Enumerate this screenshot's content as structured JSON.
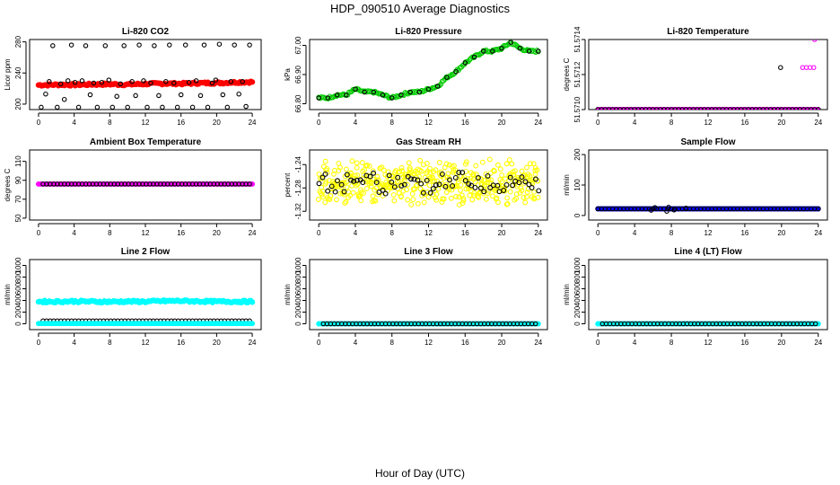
{
  "figure": {
    "title": "HDP_090510  Average Diagnostics",
    "xlabel": "Hour of Day (UTC)"
  },
  "colors": {
    "black": "#000000",
    "red": "#ff0000",
    "green": "#00cc00",
    "magenta": "#ff00ff",
    "yellow": "#ffff00",
    "blue": "#0000ff",
    "cyan": "#00ffff"
  },
  "chart_data": [
    {
      "type": "scatter",
      "title": "Li-820 CO2",
      "ylabel": "Licor ppm",
      "xlim": [
        -1,
        25
      ],
      "ylim": [
        193,
        283
      ],
      "xticks": [
        "0",
        "4",
        "8",
        "12",
        "16",
        "20",
        "24"
      ],
      "yticks": [
        "200",
        "240",
        "280"
      ],
      "series": [
        {
          "name": "all",
          "color": "red",
          "kind": "band",
          "x_start": 0,
          "x_end": 24,
          "values": [
            224.5,
            225.0,
            224.8,
            225.3,
            225.6,
            225.2,
            226.0,
            226.5,
            226.3,
            227.0,
            227.2,
            228.0,
            228.5
          ]
        },
        {
          "name": "avg",
          "color": "black",
          "x": [
            0.3,
            0.8,
            1.2,
            1.6,
            2.1,
            2.5,
            2.9,
            3.3,
            3.7,
            4.1,
            4.5,
            4.9,
            5.3,
            5.8,
            6.2,
            6.6,
            7.1,
            7.5,
            7.9,
            8.3,
            8.8,
            9.2,
            9.6,
            10.0,
            10.5,
            10.9,
            11.3,
            11.8,
            12.2,
            12.6,
            13.0,
            13.5,
            13.9,
            14.3,
            14.7,
            15.2,
            15.6,
            16.0,
            16.5,
            16.9,
            17.3,
            17.7,
            18.2,
            18.6,
            19.0,
            19.5,
            19.9,
            20.3,
            20.7,
            21.2,
            21.6,
            22.0,
            22.5,
            22.9,
            23.3,
            23.7
          ],
          "values": [
            196,
            213,
            229,
            275,
            196,
            226,
            206,
            230,
            276,
            228,
            196,
            230,
            275,
            212,
            227,
            196,
            228,
            275,
            231,
            196,
            210,
            226,
            275,
            196,
            229,
            211,
            276,
            230,
            196,
            227,
            275,
            211,
            196,
            229,
            276,
            227,
            196,
            212,
            276,
            228,
            196,
            230,
            211,
            276,
            196,
            227,
            231,
            277,
            212,
            196,
            229,
            276,
            213,
            229,
            197,
            276
          ]
        }
      ]
    },
    {
      "type": "scatter",
      "title": "Li-820 Pressure",
      "ylabel": "kPa",
      "xlim": [
        -1,
        25
      ],
      "ylim": [
        66.78,
        67.02
      ],
      "xticks": [
        "0",
        "4",
        "8",
        "12",
        "16",
        "20",
        "24"
      ],
      "yticks": [
        "66.80",
        "66.90",
        "67.00"
      ],
      "series": [
        {
          "name": "all",
          "color": "green",
          "kind": "curve",
          "x": [
            0,
            1,
            2,
            3,
            4,
            5,
            6,
            7,
            8,
            9,
            10,
            11,
            12,
            13,
            14,
            15,
            16,
            17,
            18,
            19,
            20,
            21,
            22,
            23,
            24
          ],
          "values": [
            66.82,
            66.82,
            66.83,
            66.83,
            66.85,
            66.84,
            66.84,
            66.83,
            66.82,
            66.83,
            66.84,
            66.84,
            66.85,
            66.86,
            66.89,
            66.91,
            66.94,
            66.96,
            66.98,
            66.98,
            66.99,
            67.01,
            66.99,
            66.98,
            66.98
          ]
        },
        {
          "name": "avg",
          "color": "black",
          "x": [
            0,
            1,
            2,
            3,
            4,
            5,
            6,
            7,
            8,
            9,
            10,
            11,
            12,
            13,
            14,
            15,
            16,
            17,
            18,
            19,
            20,
            21,
            22,
            23,
            24
          ],
          "values": [
            66.82,
            66.82,
            66.83,
            66.83,
            66.85,
            66.84,
            66.84,
            66.83,
            66.82,
            66.83,
            66.84,
            66.84,
            66.85,
            66.86,
            66.89,
            66.91,
            66.94,
            66.96,
            66.98,
            66.98,
            66.99,
            67.01,
            66.99,
            66.98,
            66.98
          ]
        }
      ]
    },
    {
      "type": "scatter",
      "title": "Li-820 Temperature",
      "ylabel": "degrees C",
      "xlim": [
        -1,
        25
      ],
      "ylim": [
        51.571,
        51.5714
      ],
      "xticks": [
        "0",
        "4",
        "8",
        "12",
        "16",
        "20",
        "24"
      ],
      "yticks": [
        "51.5710",
        "51.5712",
        "51.5714"
      ],
      "series": [
        {
          "name": "all",
          "color": "magenta",
          "kind": "flat",
          "x_start": 0,
          "x_end": 24,
          "value": 51.571,
          "extra_x": [
            22.3,
            22.7,
            23.1,
            23.5,
            23.6
          ],
          "extra_values": [
            51.57124,
            51.57124,
            51.57124,
            51.57124,
            51.5714
          ]
        },
        {
          "name": "avg",
          "color": "black",
          "kind": "flat",
          "x_start": 0,
          "x_end": 24,
          "value": 51.571,
          "extra_x": [
            19.9
          ],
          "extra_values": [
            51.57124
          ]
        }
      ]
    },
    {
      "type": "scatter",
      "title": "Ambient Box Temperature",
      "ylabel": "degrees C",
      "xlim": [
        -1,
        25
      ],
      "ylim": [
        48,
        122
      ],
      "xticks": [
        "0",
        "4",
        "8",
        "12",
        "16",
        "20",
        "24"
      ],
      "yticks": [
        "50",
        "70",
        "90",
        "110"
      ],
      "series": [
        {
          "name": "all",
          "color": "magenta",
          "kind": "flat",
          "x_start": 0,
          "x_end": 24,
          "value": 86
        },
        {
          "name": "avg",
          "color": "black",
          "kind": "flat",
          "x_start": 0.5,
          "x_end": 24,
          "value": 86
        }
      ]
    },
    {
      "type": "scatter",
      "title": "Gas Stream RH",
      "ylabel": "percent",
      "xlim": [
        -1,
        25
      ],
      "ylim": [
        -1.335,
        -1.215
      ],
      "xticks": [
        "0",
        "4",
        "8",
        "12",
        "16",
        "20",
        "24"
      ],
      "yticks": [
        "-1.32",
        "-1.28",
        "-1.24"
      ],
      "series": [
        {
          "name": "all",
          "color": "yellow",
          "kind": "cloud",
          "x_start": 0,
          "x_end": 24,
          "center": -1.27,
          "spread": 0.03
        },
        {
          "name": "avg",
          "color": "black",
          "kind": "cloud",
          "x_start": 0,
          "x_end": 24,
          "center": -1.268,
          "spread": 0.018
        }
      ]
    },
    {
      "type": "scatter",
      "title": "Sample Flow",
      "ylabel": "ml/min",
      "xlim": [
        -1,
        25
      ],
      "ylim": [
        -15,
        215
      ],
      "xticks": [
        "0",
        "4",
        "8",
        "12",
        "16",
        "20",
        "24"
      ],
      "yticks": [
        "0",
        "100",
        "200"
      ],
      "series": [
        {
          "name": "all",
          "color": "blue",
          "kind": "flat",
          "x_start": 0,
          "x_end": 24,
          "value": 22
        },
        {
          "name": "avg",
          "color": "black",
          "kind": "flat",
          "x_start": 0,
          "x_end": 24,
          "value": 22,
          "extra_x": [
            5.8,
            6.2,
            7.5,
            7.7,
            8.3,
            9.6
          ],
          "extra_values": [
            17,
            26,
            14,
            27,
            18,
            24
          ]
        }
      ]
    },
    {
      "type": "scatter",
      "title": "Line 2 Flow",
      "ylabel": "ml/min",
      "xlim": [
        -1,
        25
      ],
      "ylim": [
        -100,
        1100
      ],
      "xticks": [
        "0",
        "4",
        "8",
        "12",
        "16",
        "20",
        "24"
      ],
      "yticks": [
        "0",
        "200",
        "400",
        "600",
        "800",
        "1000"
      ],
      "series": [
        {
          "name": "all",
          "color": "cyan",
          "kind": "band",
          "x_start": 0,
          "x_end": 24,
          "values": [
            380,
            380,
            385,
            380,
            378,
            382,
            380,
            390,
            392,
            385,
            380,
            382,
            380
          ]
        },
        {
          "name": "avg",
          "color": "black",
          "kind": "flat",
          "x_start": 0.5,
          "x_end": 24,
          "value": 50
        },
        {
          "name": "zero",
          "color": "cyan",
          "kind": "flat",
          "x_start": 0,
          "x_end": 24,
          "value": 5
        }
      ]
    },
    {
      "type": "scatter",
      "title": "Line 3 Flow",
      "ylabel": "ml/min",
      "xlim": [
        -1,
        25
      ],
      "ylim": [
        -100,
        1100
      ],
      "xticks": [
        "0",
        "4",
        "8",
        "12",
        "16",
        "20",
        "24"
      ],
      "yticks": [
        "0",
        "200",
        "400",
        "600",
        "800",
        "1000"
      ],
      "series": [
        {
          "name": "all",
          "color": "cyan",
          "kind": "flat",
          "x_start": 0,
          "x_end": 24,
          "value": 0
        },
        {
          "name": "avg",
          "color": "black",
          "kind": "flat",
          "x_start": 0.5,
          "x_end": 24,
          "value": 0
        }
      ]
    },
    {
      "type": "scatter",
      "title": "Line 4 (LT) Flow",
      "ylabel": "ml/min",
      "xlim": [
        -1,
        25
      ],
      "ylim": [
        -100,
        1100
      ],
      "xticks": [
        "0",
        "4",
        "8",
        "12",
        "16",
        "20",
        "24"
      ],
      "yticks": [
        "0",
        "200",
        "400",
        "600",
        "800",
        "1000"
      ],
      "series": [
        {
          "name": "all",
          "color": "cyan",
          "kind": "flat",
          "x_start": 0,
          "x_end": 24,
          "value": 0
        },
        {
          "name": "avg",
          "color": "black",
          "kind": "flat",
          "x_start": 0.5,
          "x_end": 24,
          "value": 0
        }
      ]
    }
  ]
}
